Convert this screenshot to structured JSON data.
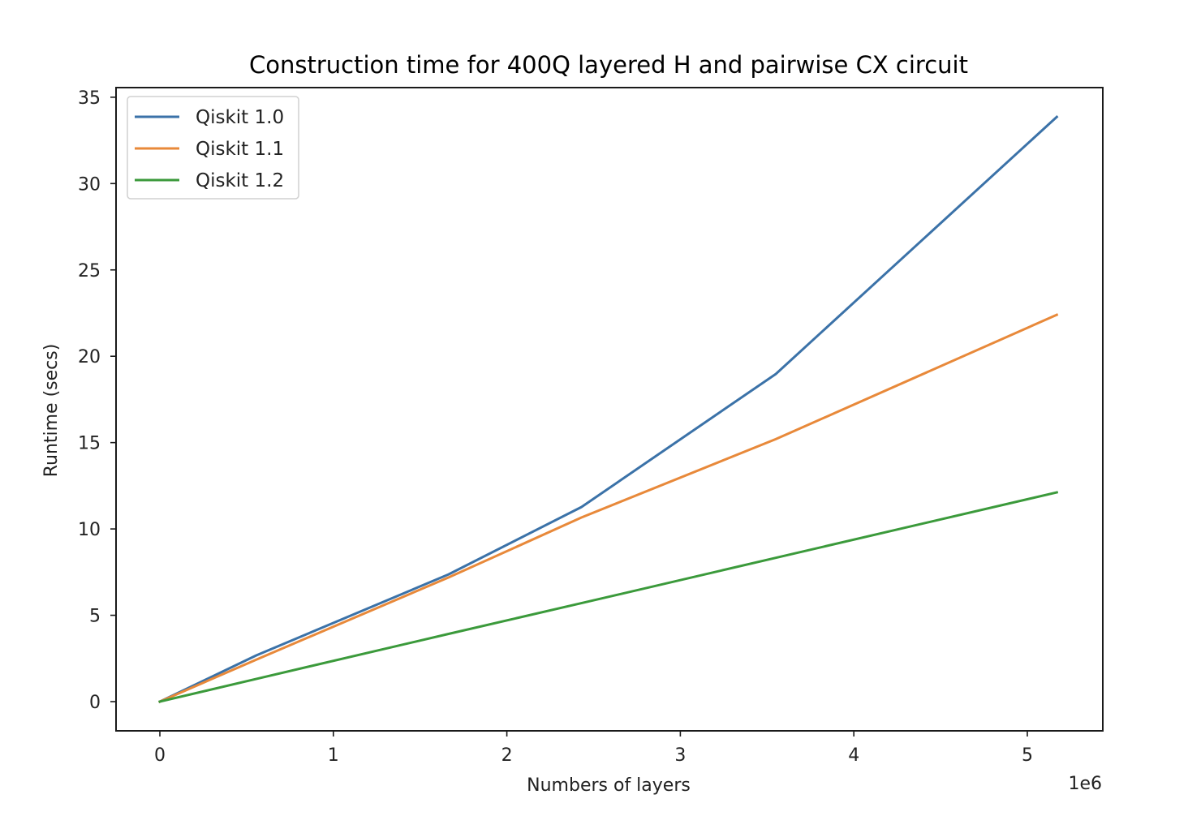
{
  "chart_data": {
    "type": "line",
    "title": "Construction time for 400Q layered H and pairwise CX circuit",
    "xlabel": "Numbers of layers",
    "ylabel": "Runtime (secs)",
    "x_offset_label": "1e6",
    "xlim": [
      -0.26,
      5.42
    ],
    "ylim": [
      -1.7,
      35.6
    ],
    "x_ticks": [
      0,
      1,
      2,
      3,
      4,
      5
    ],
    "x_tick_labels": [
      "0",
      "1",
      "2",
      "3",
      "4",
      "5"
    ],
    "y_ticks": [
      0,
      5,
      10,
      15,
      20,
      25,
      30,
      35
    ],
    "y_tick_labels": [
      "0",
      "5",
      "10",
      "15",
      "20",
      "25",
      "30",
      "35"
    ],
    "grid": false,
    "legend_position": "upper left",
    "x_scale_note": "x values in units of 1e6 layers",
    "x": [
      0,
      0.557,
      1.664,
      2.43,
      3.55,
      5.17
    ],
    "series": [
      {
        "name": "Qiskit 1.0",
        "color": "#3b72a8",
        "values": [
          0,
          2.68,
          7.37,
          11.27,
          18.97,
          33.86
        ]
      },
      {
        "name": "Qiskit 1.1",
        "color": "#e8893a",
        "values": [
          0,
          2.44,
          7.19,
          10.66,
          15.2,
          22.4
        ]
      },
      {
        "name": "Qiskit 1.2",
        "color": "#3b9a3b",
        "values": [
          0,
          1.32,
          3.92,
          5.7,
          8.33,
          12.12
        ]
      }
    ]
  }
}
